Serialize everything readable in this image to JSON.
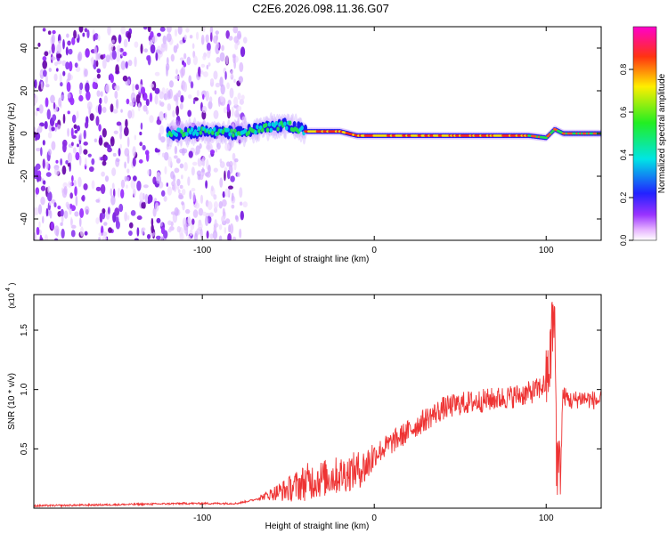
{
  "title": "C2E6.2026.098.11.36.G07",
  "chart_data": [
    {
      "type": "heatmap",
      "xlabel": "Height of straight line (km)",
      "ylabel": "Frequency (Hz)",
      "xlim": [
        -198,
        132
      ],
      "ylim": [
        -50,
        50
      ],
      "xticks": [
        -100,
        0,
        100
      ],
      "yticks": [
        -40,
        -20,
        0,
        20,
        40
      ],
      "colorbar": {
        "label": "Normalized spectral amplitude",
        "ticks": [
          0.0,
          0.2,
          0.4,
          0.6,
          0.8
        ],
        "range": [
          0,
          1
        ]
      },
      "trace": {
        "noise_region_x": [
          -198,
          -75
        ],
        "carrier_x": [
          -120,
          132
        ],
        "carrier_freq_hz": [
          [
            -120,
            0
          ],
          [
            -100,
            1
          ],
          [
            -80,
            0
          ],
          [
            -60,
            3
          ],
          [
            -50,
            4
          ],
          [
            -40,
            1
          ],
          [
            -20,
            1
          ],
          [
            -10,
            -1
          ],
          [
            0,
            -1
          ],
          [
            50,
            -1
          ],
          [
            90,
            -1
          ],
          [
            100,
            -2
          ],
          [
            105,
            2
          ],
          [
            110,
            0
          ],
          [
            132,
            0
          ]
        ]
      }
    },
    {
      "type": "line",
      "xlabel": "Height of straight line (km)",
      "ylabel": "SNR (10 * v/v)",
      "multiplier": "(x10",
      "multiplier_exp": "4",
      "multiplier_close": ")",
      "xlim": [
        -198,
        132
      ],
      "ylim": [
        0,
        1.8
      ],
      "xticks": [
        -100,
        0,
        100
      ],
      "yticks": [
        0.5,
        1.0,
        1.5
      ],
      "ytick_labels": [
        "0.5",
        "1.0",
        "1.5"
      ],
      "color": "#ee3333",
      "series": [
        {
          "name": "SNR",
          "x": [
            -198,
            -150,
            -110,
            -80,
            -70,
            -60,
            -50,
            -40,
            -30,
            -20,
            -10,
            -5,
            0,
            10,
            20,
            30,
            40,
            50,
            60,
            70,
            80,
            90,
            95,
            100,
            103,
            105,
            106,
            108,
            110,
            115,
            120,
            132
          ],
          "y": [
            0.02,
            0.03,
            0.04,
            0.04,
            0.07,
            0.12,
            0.16,
            0.22,
            0.25,
            0.28,
            0.32,
            0.35,
            0.45,
            0.55,
            0.65,
            0.75,
            0.84,
            0.88,
            0.9,
            0.92,
            0.94,
            0.97,
            1.0,
            1.05,
            1.3,
            1.6,
            0.4,
            0.3,
            0.95,
            0.9,
            0.93,
            0.9
          ]
        }
      ]
    }
  ]
}
